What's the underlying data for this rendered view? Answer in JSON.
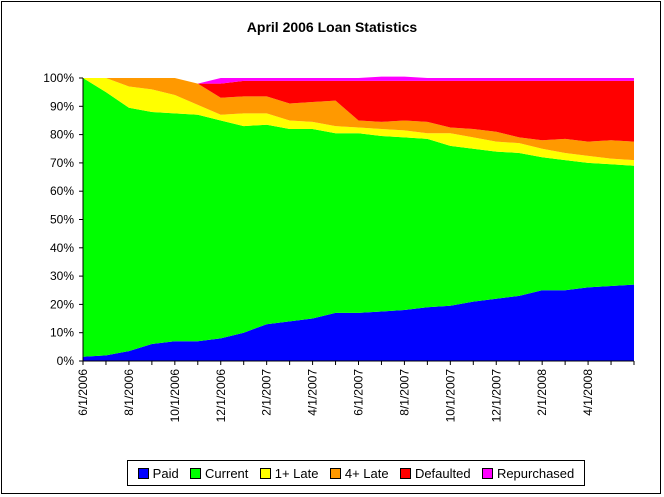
{
  "chart_data": {
    "type": "area",
    "stacked": true,
    "title": "April 2006 Loan Statistics",
    "xlabel": "",
    "ylabel": "",
    "ylim": [
      0,
      100
    ],
    "y_ticks": [
      "0%",
      "10%",
      "20%",
      "30%",
      "40%",
      "50%",
      "60%",
      "70%",
      "80%",
      "90%",
      "100%"
    ],
    "x_tick_labels": [
      "6/1/2006",
      "8/1/2006",
      "10/1/2006",
      "12/1/2006",
      "2/1/2007",
      "4/1/2007",
      "6/1/2007",
      "8/1/2007",
      "10/1/2007",
      "12/1/2007",
      "2/1/2008",
      "4/1/2008"
    ],
    "x_months": [
      "2006-06",
      "2006-07",
      "2006-08",
      "2006-09",
      "2006-10",
      "2006-11",
      "2006-12",
      "2007-01",
      "2007-02",
      "2007-03",
      "2007-04",
      "2007-05",
      "2007-06",
      "2007-07",
      "2007-08",
      "2007-09",
      "2007-10",
      "2007-11",
      "2007-12",
      "2008-01",
      "2008-02",
      "2008-03",
      "2008-04",
      "2008-05",
      "2008-06"
    ],
    "grid": false,
    "legend_position": "bottom",
    "series": [
      {
        "name": "Paid",
        "color": "#0000FF",
        "values": [
          1.5,
          2,
          3.5,
          6,
          7,
          7,
          8,
          10,
          13,
          14,
          15,
          17,
          17,
          17.5,
          18,
          19,
          19.5,
          21,
          22,
          23,
          25,
          25,
          26,
          26.5,
          27
        ]
      },
      {
        "name": "Current",
        "color": "#00FF00",
        "values": [
          98.5,
          93,
          86,
          82,
          80.5,
          80,
          77,
          73,
          70.5,
          68,
          67,
          63.5,
          63.5,
          62,
          61,
          59.5,
          56.5,
          54,
          52,
          50.5,
          47,
          46,
          44,
          43,
          42
        ]
      },
      {
        "name": "1+ Late",
        "color": "#FFFF00",
        "values": [
          0,
          5,
          7.5,
          8,
          6.5,
          3.5,
          2,
          4.5,
          4,
          3,
          2.5,
          2.5,
          2,
          2.5,
          2.5,
          2,
          4.5,
          4,
          3.5,
          3.5,
          3,
          2.5,
          2.5,
          2,
          2
        ]
      },
      {
        "name": "4+ Late",
        "color": "#FF9900",
        "values": [
          0,
          0,
          3,
          4,
          6,
          7.5,
          6,
          6,
          6,
          6,
          7,
          9,
          2.5,
          2.5,
          3.5,
          4,
          2,
          3,
          3.5,
          2,
          3,
          5,
          5,
          6.5,
          6.5
        ]
      },
      {
        "name": "Defaulted",
        "color": "#FF0000",
        "values": [
          0,
          0,
          0,
          0,
          0,
          0,
          5,
          5.5,
          5.5,
          8,
          7.5,
          7,
          14,
          14.5,
          14,
          14.5,
          16.5,
          17,
          18,
          20,
          21,
          20.5,
          21.5,
          21,
          21.5
        ]
      },
      {
        "name": "Repurchased",
        "color": "#FF00FF",
        "values": [
          0,
          0,
          0,
          0,
          0,
          0,
          2,
          1,
          1,
          1,
          1,
          1,
          1,
          1.5,
          1.5,
          1,
          1,
          1,
          1,
          1,
          1,
          1,
          1,
          1,
          1
        ]
      }
    ]
  }
}
